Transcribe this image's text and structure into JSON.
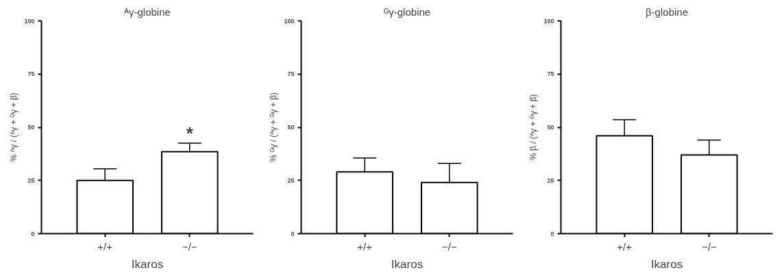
{
  "chart_data": [
    {
      "type": "bar",
      "title": "ᴬγ-globine",
      "xlabel": "Ikaros",
      "ylabel": "% ᴬγ / (ᴬγ + ᴳγ + β)",
      "categories": [
        "+/+",
        "−/−"
      ],
      "values": [
        25,
        38.5
      ],
      "errors": [
        [
          25,
          30.5
        ],
        [
          38.5,
          42.5
        ]
      ],
      "color": "#ffffff",
      "ylim": [
        0,
        100
      ],
      "yticks": [
        0,
        25,
        50,
        75,
        100
      ],
      "grid": false,
      "annotations": [
        "*"
      ]
    },
    {
      "type": "bar",
      "title": "ᴳγ-globine",
      "xlabel": "Ikaros",
      "ylabel": "% ᴳγ / (ᴬγ + ᴳγ + β)",
      "categories": [
        "+/+",
        "−/−"
      ],
      "values": [
        29,
        24
      ],
      "errors": [
        [
          29,
          35.5
        ],
        [
          24,
          33
        ]
      ],
      "color": "#ffffff",
      "ylim": [
        0,
        100
      ],
      "yticks": [
        0,
        25,
        50,
        75,
        100
      ],
      "grid": false
    },
    {
      "type": "bar",
      "title": "β-globine",
      "xlabel": "Ikaros",
      "ylabel": "% β / (ᴬγ + ᴳγ + β)",
      "categories": [
        "+/+",
        "−/−"
      ],
      "values": [
        46,
        37
      ],
      "errors": [
        [
          46,
          53.5
        ],
        [
          37,
          44
        ]
      ],
      "color": "#ffffff",
      "ylim": [
        0,
        100
      ],
      "yticks": [
        0,
        25,
        50,
        75,
        100
      ],
      "grid": false
    }
  ]
}
